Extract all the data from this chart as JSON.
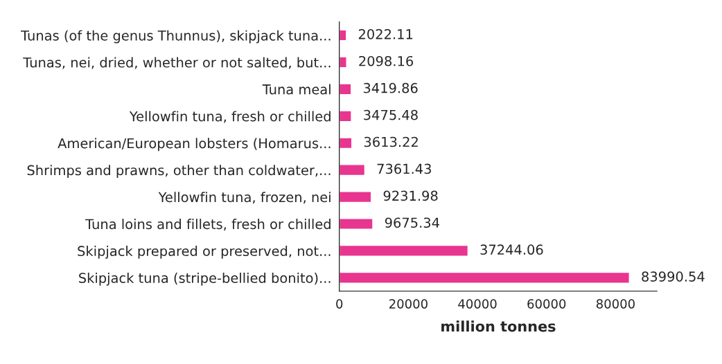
{
  "chart_data": {
    "type": "bar",
    "orientation": "horizontal",
    "xlabel": "million tonnes",
    "categories": [
      "Tunas (of the genus Thunnus), skipjack tuna...",
      "Tunas, nei, dried, whether or not salted, but...",
      "Tuna meal",
      "Yellowfin tuna, fresh or chilled",
      "American/European lobsters (Homarus...",
      "Shrimps and prawns, other than coldwater,...",
      "Yellowfin tuna, frozen, nei",
      "Tuna loins and fillets, fresh or chilled",
      "Skipjack prepared or preserved, not...",
      "Skipjack tuna (stripe-bellied bonito)..."
    ],
    "values": [
      2022.11,
      2098.16,
      3419.86,
      3475.48,
      3613.22,
      7361.43,
      9231.98,
      9675.34,
      37244.06,
      83990.54
    ],
    "color": "#e8358f",
    "xlim": [
      0,
      92000
    ],
    "xticks": [
      0,
      20000,
      40000,
      60000,
      80000
    ],
    "data_labels": true,
    "grid": false,
    "legend": false
  }
}
